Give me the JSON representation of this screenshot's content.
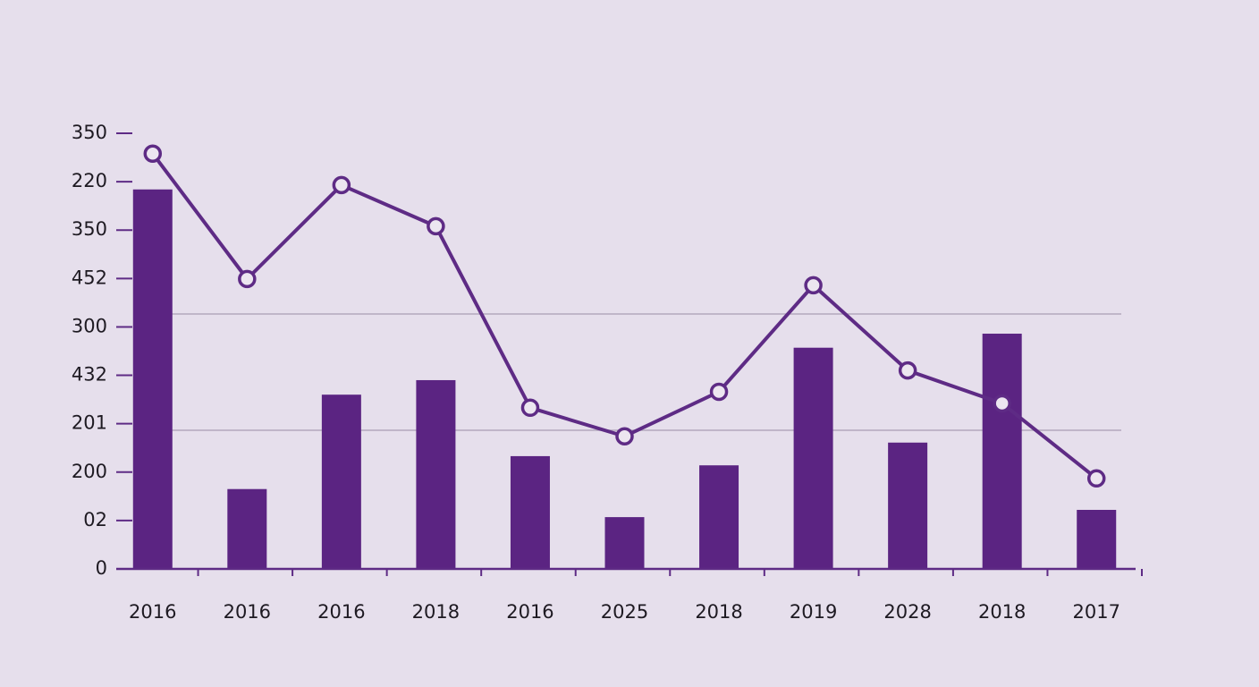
{
  "chart_data": {
    "type": "bar-line",
    "categories": [
      "2016",
      "2016",
      "2016",
      "2018",
      "2016",
      "2025",
      "2018",
      "2019",
      "2028",
      "2018",
      "2017"
    ],
    "series": [
      {
        "type": "bar",
        "color": "#5b2482",
        "values": [
          7.84,
          1.65,
          3.6,
          3.9,
          2.33,
          1.07,
          2.14,
          4.57,
          2.61,
          4.86,
          1.22
        ]
      },
      {
        "type": "line",
        "color": "#5e2b85",
        "values": [
          8.58,
          5.99,
          7.93,
          7.08,
          3.33,
          2.74,
          3.66,
          5.86,
          4.1,
          3.42,
          1.87
        ]
      }
    ],
    "ylim": [
      0,
      9
    ],
    "yticks": [
      0,
      {
        "value": 1,
        "label": "02"
      },
      {
        "value": 2,
        "label": "200"
      },
      {
        "value": 3,
        "label": "201"
      },
      {
        "value": 4,
        "label": "432"
      },
      {
        "value": 5,
        "label": "300"
      },
      {
        "value": 6,
        "label": "452"
      },
      {
        "value": 7,
        "label": "350"
      },
      {
        "value": 8,
        "label": "220"
      },
      {
        "value": 9,
        "label": "350"
      }
    ]
  }
}
